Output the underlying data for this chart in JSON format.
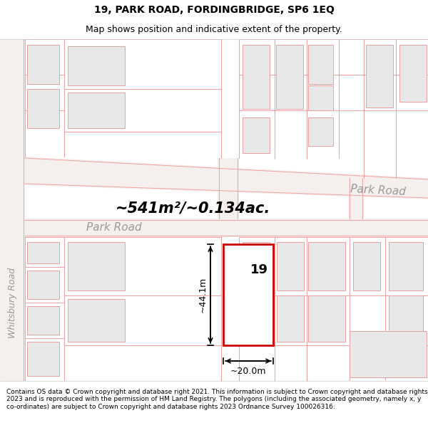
{
  "title_line1": "19, PARK ROAD, FORDINGBRIDGE, SP6 1EQ",
  "title_line2": "Map shows position and indicative extent of the property.",
  "footer_text": "Contains OS data © Crown copyright and database right 2021. This information is subject to Crown copyright and database rights 2023 and is reproduced with the permission of HM Land Registry. The polygons (including the associated geometry, namely x, y co-ordinates) are subject to Crown copyright and database rights 2023 Ordnance Survey 100026316.",
  "area_text": "~541m²/~0.134ac.",
  "width_text": "~20.0m",
  "height_text": "~44.1m",
  "property_number": "19",
  "road_label_left": "Park Road",
  "road_label_right": "Park Road",
  "road_label_vertical": "Whitsbury Road",
  "plot_outline_color": "#cc0000",
  "building_fill": "#e8e8e8",
  "building_outline": "#e8a0a0",
  "road_line_color": "#f0a0a0",
  "road_fill": "#f5f0ee",
  "map_bg": "#f8f6f4",
  "title_fontsize": 10,
  "subtitle_fontsize": 9,
  "footer_fontsize": 6.5,
  "area_fontsize": 15,
  "dim_fontsize": 9,
  "road_label_fontsize": 11,
  "vert_road_fontsize": 9
}
